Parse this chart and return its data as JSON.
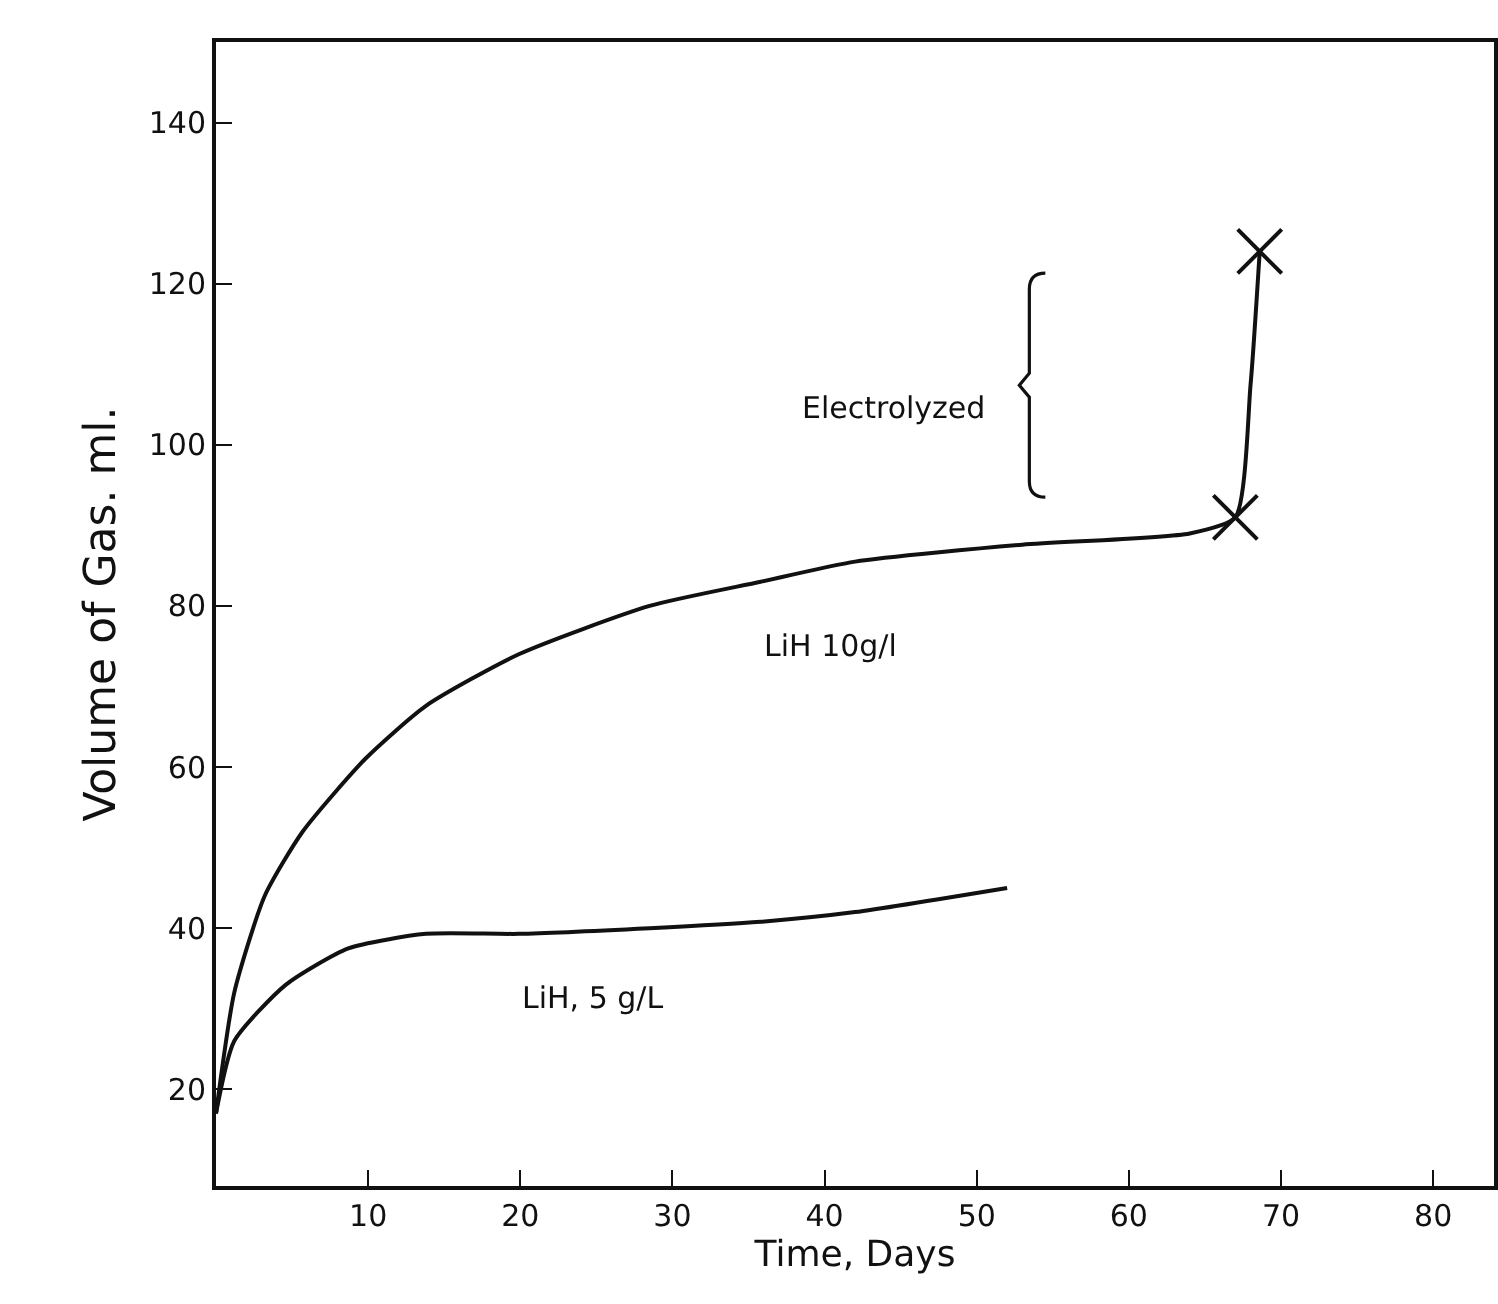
{
  "chart_data": {
    "type": "line",
    "xlabel": "Time, Days",
    "ylabel": "Volume of Gas. ml.",
    "xlim": [
      0,
      84
    ],
    "ylim": [
      8,
      150
    ],
    "xticks": [
      10,
      20,
      30,
      40,
      50,
      60,
      70,
      80
    ],
    "yticks": [
      20,
      40,
      60,
      80,
      100,
      120,
      140
    ],
    "grid": false,
    "legend": false,
    "marker": "none",
    "line_style": "solid",
    "series": [
      {
        "name": "LiH 10g/l",
        "color": "#111111",
        "x": [
          0,
          1.2,
          3.2,
          5.7,
          9.8,
          13.8,
          19.9,
          28.5,
          35.8,
          42,
          53,
          64,
          67,
          68,
          68.6
        ],
        "values": [
          17,
          32,
          44,
          52,
          61,
          67.6,
          74,
          80,
          83,
          85.5,
          87.6,
          89,
          91,
          107.5,
          124
        ]
      },
      {
        "name": "LiH, 5 g/L",
        "color": "#111111",
        "x": [
          0,
          1.2,
          4.6,
          8.7,
          13.8,
          19.9,
          28.5,
          35.8,
          42,
          52
        ],
        "values": [
          17,
          26,
          33,
          37.5,
          39.3,
          39.3,
          40,
          40.8,
          42,
          45
        ]
      },
      {
        "type": "scatter",
        "marker": "cross",
        "color": "#111111",
        "x": [
          67,
          68.6
        ],
        "values": [
          91,
          124
        ]
      }
    ],
    "annotations": [
      "Electrolyzed"
    ]
  }
}
